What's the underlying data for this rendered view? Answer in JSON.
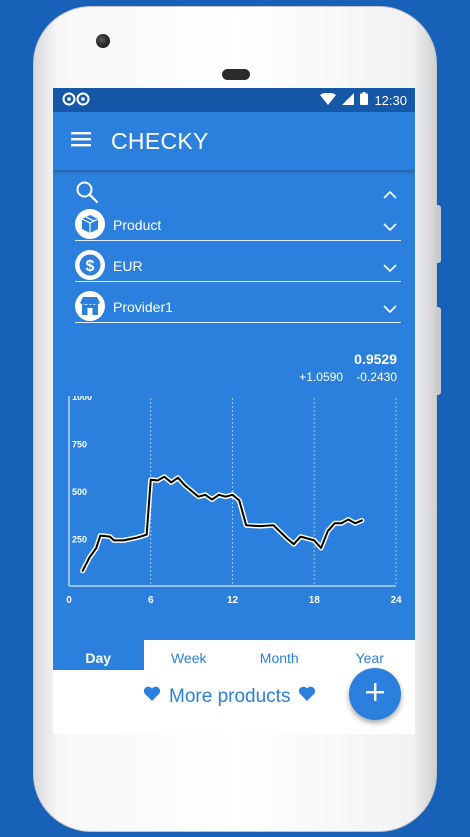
{
  "status": {
    "time": "12:30"
  },
  "app": {
    "title": "CHECKY"
  },
  "filters": [
    {
      "icon": "package-icon",
      "label": "Product"
    },
    {
      "icon": "dollar-icon",
      "label": "EUR"
    },
    {
      "icon": "store-icon",
      "label": "Provider1"
    }
  ],
  "summary": {
    "value": "0.9529",
    "change_1": "+1.0590",
    "change_2": "-0.2430"
  },
  "chart_data": {
    "type": "line",
    "x_ticks": [
      "0",
      "6",
      "12",
      "18",
      "24"
    ],
    "y_ticks": [
      "250",
      "500",
      "750",
      "1000"
    ],
    "xlim": [
      0,
      24
    ],
    "ylim": [
      0,
      1000
    ],
    "grid": true,
    "series": [
      {
        "x": [
          1,
          1.5,
          2,
          2.3,
          3,
          3.3,
          4,
          5,
          5.7,
          6,
          6.5,
          7,
          7.5,
          8,
          8.5,
          9,
          9.5,
          10,
          10.5,
          11,
          11.5,
          12,
          12.5,
          13,
          14,
          15,
          16,
          16.5,
          17,
          18,
          18.5,
          19,
          19.5,
          20,
          20.5,
          21,
          21.5
        ],
        "y": [
          80,
          150,
          200,
          265,
          260,
          240,
          240,
          255,
          270,
          560,
          555,
          575,
          545,
          570,
          530,
          500,
          470,
          480,
          455,
          480,
          470,
          480,
          450,
          320,
          315,
          320,
          250,
          220,
          260,
          240,
          200,
          290,
          330,
          330,
          350,
          330,
          345
        ]
      }
    ]
  },
  "tabs": [
    "Day",
    "Week",
    "Month",
    "Year"
  ],
  "more_products": "More products",
  "colors": {
    "primary": "#2a80dc",
    "status_bar": "#1658a8",
    "background": "#1761b8"
  }
}
